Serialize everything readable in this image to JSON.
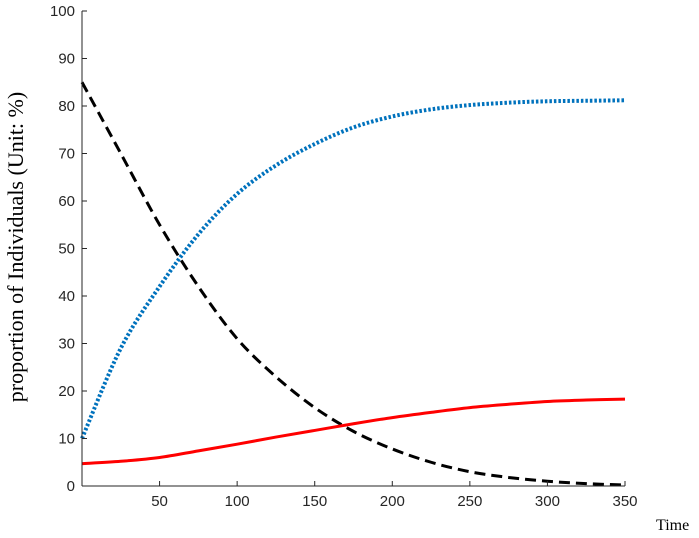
{
  "chart_data": {
    "type": "line",
    "title": "",
    "xlabel": "Time",
    "ylabel": "proportion of Individuals (Unit: %)",
    "xlim": [
      0,
      350
    ],
    "ylim": [
      0,
      100
    ],
    "xticks": [
      50,
      100,
      150,
      200,
      250,
      300,
      350
    ],
    "yticks": [
      0,
      10,
      20,
      30,
      40,
      50,
      60,
      70,
      80,
      90,
      100
    ],
    "grid": false,
    "legend": "none",
    "series": [
      {
        "style": "dashed",
        "color": "#000000",
        "x": [
          0,
          25,
          50,
          75,
          100,
          125,
          150,
          175,
          200,
          225,
          250,
          275,
          300,
          325,
          350
        ],
        "y": [
          85,
          70,
          55,
          42,
          31,
          23,
          16.5,
          11.5,
          7.8,
          5,
          3,
          1.8,
          1,
          0.5,
          0.2
        ]
      },
      {
        "style": "dotted",
        "color": "#0072BD",
        "x": [
          0,
          25,
          50,
          75,
          100,
          125,
          150,
          175,
          200,
          225,
          250,
          275,
          300,
          325,
          350
        ],
        "y": [
          10,
          29,
          42,
          53,
          61.5,
          67.5,
          72,
          75.5,
          77.8,
          79.3,
          80.2,
          80.7,
          81,
          81.1,
          81.2
        ]
      },
      {
        "style": "solid",
        "color": "#FF0000",
        "x": [
          0,
          25,
          50,
          75,
          100,
          125,
          150,
          175,
          200,
          225,
          250,
          275,
          300,
          325,
          350
        ],
        "y": [
          4.7,
          5.2,
          6,
          7.4,
          8.8,
          10.3,
          11.7,
          13.1,
          14.4,
          15.5,
          16.5,
          17.2,
          17.8,
          18.1,
          18.3
        ]
      }
    ]
  }
}
